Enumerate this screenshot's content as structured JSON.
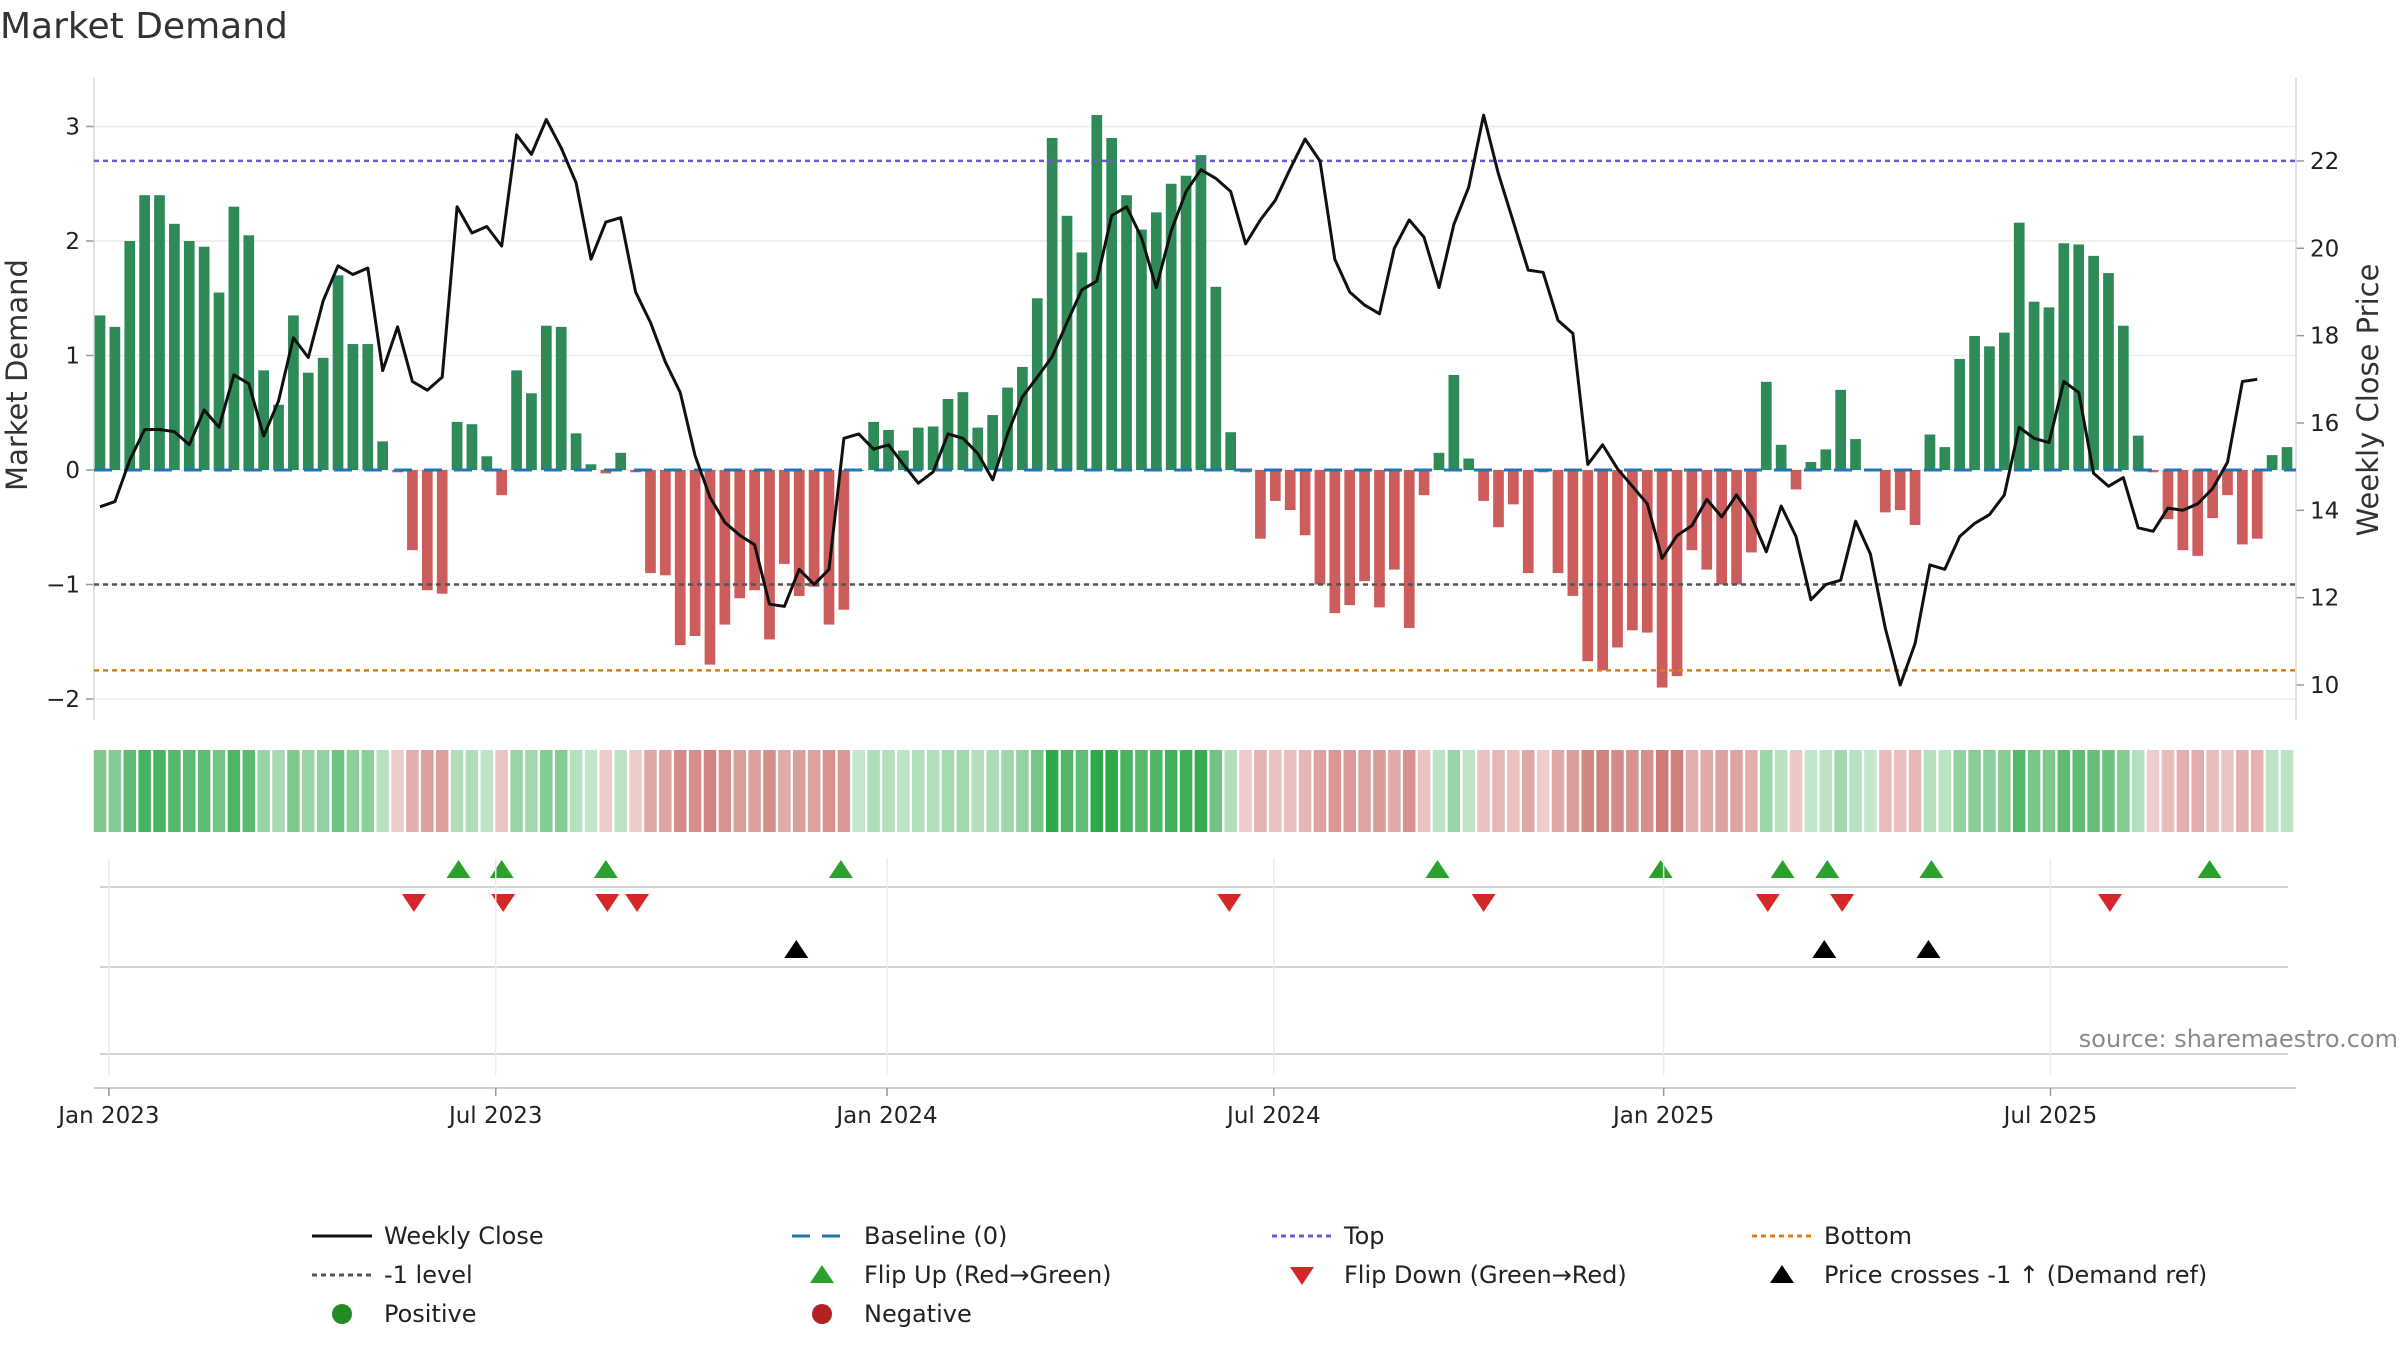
{
  "chart_data": {
    "type": "bar",
    "title": "Market Demand",
    "ylabel_left": "Market Demand",
    "ylabel_right": "Weekly Close Price",
    "ylim_left": [
      -2.2,
      3.3
    ],
    "ylim_right": [
      9.5,
      23.4
    ],
    "left_ticks": [
      "3",
      "2",
      "1",
      "0",
      "−1",
      "−2"
    ],
    "left_tick_values": [
      3,
      2,
      1,
      0,
      -1,
      -2
    ],
    "right_ticks": [
      "22",
      "20",
      "18",
      "16",
      "14",
      "12",
      "10"
    ],
    "right_tick_values": [
      22,
      20,
      18,
      16,
      14,
      12,
      10
    ],
    "x_tick_labels": [
      "Jan 2023",
      "Jul 2023",
      "Jan 2024",
      "Jul 2024",
      "Jan 2025",
      "Jul 2025"
    ],
    "x_tick_weeks": [
      0.6,
      26.6,
      52.9,
      78.9,
      105.1,
      131.1
    ],
    "top_level": 2.7,
    "bottom_level": -1.75,
    "minus_one_level": -1.0,
    "demand": [
      1.35,
      1.25,
      2.0,
      2.4,
      2.4,
      2.15,
      2.0,
      1.95,
      1.55,
      2.3,
      2.05,
      0.87,
      0.57,
      1.35,
      0.85,
      0.98,
      1.7,
      1.1,
      1.1,
      0.25,
      -0.02,
      -0.7,
      -1.05,
      -1.08,
      0.42,
      0.4,
      0.12,
      -0.22,
      0.87,
      0.67,
      1.26,
      1.25,
      0.32,
      0.05,
      -0.03,
      0.15,
      -0.02,
      -0.9,
      -0.92,
      -1.53,
      -1.45,
      -1.7,
      -1.35,
      -1.12,
      -1.05,
      -1.48,
      -0.82,
      -1.1,
      -1.02,
      -1.35,
      -1.22,
      0.0,
      0.42,
      0.35,
      0.17,
      0.37,
      0.38,
      0.62,
      0.68,
      0.37,
      0.48,
      0.72,
      0.9,
      1.5,
      2.9,
      2.22,
      1.9,
      3.1,
      2.9,
      2.4,
      2.1,
      2.25,
      2.5,
      2.57,
      2.75,
      1.6,
      0.33,
      -0.02,
      -0.6,
      -0.27,
      -0.35,
      -0.57,
      -1.0,
      -1.25,
      -1.18,
      -0.97,
      -1.2,
      -0.87,
      -1.38,
      -0.22,
      0.15,
      0.83,
      0.1,
      -0.27,
      -0.5,
      -0.3,
      -0.9,
      -0.02,
      -0.9,
      -1.1,
      -1.67,
      -1.75,
      -1.55,
      -1.4,
      -1.42,
      -1.9,
      -1.8,
      -0.7,
      -0.87,
      -1.0,
      -1.0,
      -0.72,
      0.77,
      0.22,
      -0.17,
      0.07,
      0.18,
      0.7,
      0.27,
      0.0,
      -0.37,
      -0.35,
      -0.48,
      0.31,
      0.2,
      0.97,
      1.17,
      1.08,
      1.2,
      2.16,
      1.47,
      1.42,
      1.98,
      1.97,
      1.87,
      1.72,
      1.26,
      0.3,
      -0.02,
      -0.43,
      -0.7,
      -0.75,
      -0.42,
      -0.22,
      -0.65,
      -0.6,
      0.13,
      0.2
    ],
    "price": [
      14.08,
      14.2,
      15.15,
      15.85,
      15.85,
      15.8,
      15.5,
      16.3,
      15.9,
      17.1,
      16.9,
      15.7,
      16.5,
      17.95,
      17.5,
      18.8,
      19.6,
      19.4,
      19.55,
      17.2,
      18.2,
      16.95,
      16.75,
      17.05,
      20.95,
      20.35,
      20.5,
      20.05,
      22.6,
      22.15,
      22.95,
      22.3,
      21.5,
      19.75,
      20.6,
      20.7,
      19.0,
      18.3,
      17.4,
      16.7,
      15.25,
      14.3,
      13.72,
      13.43,
      13.21,
      11.85,
      11.8,
      12.65,
      12.3,
      12.65,
      15.65,
      15.75,
      15.4,
      15.5,
      15.05,
      14.62,
      14.88,
      15.75,
      15.65,
      15.3,
      14.7,
      15.75,
      16.6,
      17.05,
      17.52,
      18.3,
      19.05,
      19.25,
      20.75,
      20.95,
      20.25,
      19.1,
      20.4,
      21.3,
      21.8,
      21.6,
      21.3,
      20.1,
      20.65,
      21.1,
      21.82,
      22.5,
      22.0,
      19.75,
      19.0,
      18.7,
      18.5,
      20.0,
      20.65,
      20.25,
      19.1,
      20.55,
      21.4,
      23.05,
      21.7,
      20.6,
      19.5,
      19.45,
      18.35,
      18.05,
      15.05,
      15.5,
      14.95,
      14.55,
      14.15,
      12.9,
      13.42,
      13.65,
      14.25,
      13.85,
      14.35,
      13.85,
      13.05,
      14.1,
      13.4,
      11.95,
      12.3,
      12.4,
      13.75,
      13.0,
      11.3,
      10.0,
      10.95,
      12.75,
      12.65,
      13.4,
      13.7,
      13.9,
      14.35,
      15.9,
      15.65,
      15.55,
      16.95,
      16.7,
      14.85,
      14.55,
      14.75,
      13.6,
      13.52,
      14.05,
      14.0,
      14.15,
      14.5,
      15.1,
      16.95,
      17.0
    ],
    "flip_up_weeks": [
      24.1,
      27.0,
      34.0,
      49.8,
      89.9,
      104.9,
      113.1,
      116.1,
      123.1,
      141.8
    ],
    "flip_down_weeks": [
      21.1,
      27.1,
      34.1,
      36.1,
      75.9,
      93.0,
      112.1,
      117.1,
      135.1
    ],
    "price_cross_weeks": [
      46.8,
      115.9,
      122.9
    ],
    "colors": {
      "bar_positive": "#2e8b57",
      "bar_negative": "#cd5c5c",
      "price_line": "#111111",
      "baseline": "#1f77b4",
      "top_line": "#6a5acd",
      "bottom_line": "#e07b1a",
      "minus_one_line": "#555555",
      "flip_up": "#2ca02c",
      "flip_down": "#d62728",
      "price_cross": "#000000",
      "positive_dot": "#228b22",
      "negative_dot": "#b22222"
    },
    "legend": [
      {
        "label": "Weekly Close",
        "marker": "line-solid-black"
      },
      {
        "label": "Baseline (0)",
        "marker": "line-dashed-blue"
      },
      {
        "label": "Top",
        "marker": "line-dotted-purple"
      },
      {
        "label": "Bottom",
        "marker": "line-dotted-orange"
      },
      {
        "label": "-1 level",
        "marker": "line-dotted-gray"
      },
      {
        "label": "Flip Up (Red→Green)",
        "marker": "triangle-up-green"
      },
      {
        "label": "Flip Down (Green→Red)",
        "marker": "triangle-down-red"
      },
      {
        "label": "Price crosses -1 ↑ (Demand ref)",
        "marker": "triangle-up-black"
      },
      {
        "label": "Positive",
        "marker": "dot-green"
      },
      {
        "label": "Negative",
        "marker": "dot-red"
      }
    ],
    "source": "source: sharemaestro.com"
  }
}
